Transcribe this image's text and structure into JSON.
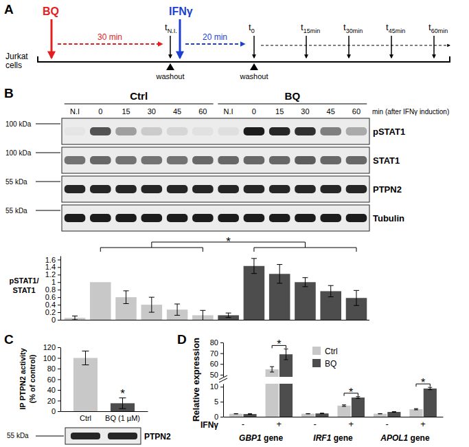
{
  "panel_labels": [
    "A",
    "B",
    "C",
    "D"
  ],
  "timeline": {
    "cell_label": [
      "Jurkat",
      "cells"
    ],
    "treatment": {
      "text": "BQ",
      "color": "#e41e1e",
      "duration": "30 min"
    },
    "stimulus": {
      "text": "IFNγ",
      "color": "#1c3fd1",
      "duration": "20 min"
    },
    "washout": [
      "washout",
      "washout"
    ],
    "timepoints": [
      {
        "base": "t",
        "sub": "N.I."
      },
      {
        "base": "t",
        "sub": "0"
      },
      {
        "base": "t",
        "sub": "15min"
      },
      {
        "base": "t",
        "sub": "30min"
      },
      {
        "base": "t",
        "sub": "45min"
      },
      {
        "base": "t",
        "sub": "60min"
      }
    ]
  },
  "blot_B": {
    "groups": [
      "Ctrl",
      "BQ"
    ],
    "lanes": [
      "N.I",
      "0",
      "15",
      "30",
      "45",
      "60",
      "N.I",
      "0",
      "15",
      "30",
      "45",
      "60"
    ],
    "lane_unit": "min (after IFNγ induction)",
    "rows": [
      {
        "name": "pSTAT1",
        "ladder": "100 kDa",
        "intensity": [
          0.03,
          0.7,
          0.35,
          0.15,
          0.1,
          0.05,
          0.06,
          0.95,
          0.9,
          0.85,
          0.5,
          0.3
        ]
      },
      {
        "name": "STAT1",
        "ladder": "100 kDa",
        "intensity": [
          0.55,
          0.6,
          0.55,
          0.55,
          0.55,
          0.6,
          0.6,
          0.6,
          0.6,
          0.65,
          0.6,
          0.6
        ]
      },
      {
        "name": "PTPN2",
        "ladder": "55 kDa",
        "intensity": [
          0.9,
          0.9,
          0.9,
          0.9,
          0.9,
          0.9,
          0.9,
          0.9,
          0.9,
          0.9,
          0.9,
          0.9
        ]
      },
      {
        "name": "Tubulin",
        "ladder": "55 kDa",
        "intensity": [
          0.95,
          0.95,
          0.95,
          0.95,
          0.95,
          0.95,
          0.95,
          0.95,
          0.95,
          0.95,
          0.95,
          0.95
        ]
      }
    ]
  },
  "blot_C": {
    "rows": [
      {
        "name": "PTPN2",
        "ladder": "55 kDa",
        "intensity": [
          0.9,
          0.9
        ]
      }
    ]
  },
  "chart_data": [
    {
      "type": "bar",
      "y_label": [
        "pSTAT1/",
        "STAT1"
      ],
      "categories": [
        null,
        null,
        null,
        null,
        null,
        null,
        null,
        null,
        null,
        null,
        null,
        null
      ],
      "series": [
        {
          "color": "#c8c8c8",
          "values": [
            0.05,
            1,
            0.6,
            0.4,
            0.27,
            0.12,
            null,
            null,
            null,
            null,
            null,
            null
          ],
          "errors": [
            0.05,
            null,
            0.17,
            0.2,
            0.15,
            0.13,
            null,
            null,
            null,
            null,
            null,
            null
          ]
        },
        {
          "color": "#4d4d4d",
          "values": [
            null,
            null,
            null,
            null,
            null,
            null,
            0.12,
            1.43,
            1.22,
            1.0,
            0.76,
            0.58
          ],
          "errors": [
            null,
            null,
            null,
            null,
            null,
            null,
            0.06,
            0.2,
            0.25,
            0.12,
            0.15,
            0.2
          ]
        }
      ],
      "ylim": [
        0,
        1.7
      ],
      "yticks": [
        0,
        0.2,
        0.4,
        0.6,
        0.8,
        1,
        1.2,
        1.4,
        1.6
      ],
      "tick_labels": "y",
      "annotations": [
        {
          "text": "*",
          "from": [
            1,
            5
          ],
          "to": [
            7,
            11
          ]
        }
      ]
    },
    {
      "type": "bar",
      "y_label": [
        "IP PTPN2 activity",
        "(% of control)"
      ],
      "categories": [
        "Ctrl",
        "BQ (1 µM)"
      ],
      "values": [
        100,
        15
      ],
      "errors": [
        13,
        10
      ],
      "colors": [
        "#c8c8c8",
        "#4d4d4d"
      ],
      "ylim": [
        0,
        120
      ],
      "yticks": [
        0,
        20,
        40,
        60,
        80,
        100,
        120
      ],
      "annotations": [
        {
          "text": "*",
          "category": 1
        }
      ]
    },
    {
      "type": "bar",
      "y_label": "Relative expression",
      "x_label": "IFNγ",
      "categories": [
        "-",
        "+",
        "-",
        "+",
        "-",
        "+"
      ],
      "groups": [
        "GBP1 gene",
        "IRF1 gene",
        "APOL1 gene"
      ],
      "series": [
        {
          "name": "Ctrl",
          "color": "#c8c8c8",
          "values": [
            1,
            55,
            1,
            3.7,
            1,
            2.5
          ],
          "errors": [
            0.05,
            2.5,
            0.05,
            0.25,
            0.05,
            0.2
          ]
        },
        {
          "name": "BQ",
          "color": "#4d4d4d",
          "values": [
            0.9,
            69,
            1.1,
            6.4,
            1.6,
            9.4
          ],
          "errors": [
            0.1,
            5,
            0.1,
            0.3,
            0.1,
            0.4
          ]
        }
      ],
      "ylim": [
        0,
        80
      ],
      "ybreak": [
        11,
        48
      ],
      "yticks": [
        0,
        5,
        10,
        50,
        60,
        70,
        80
      ],
      "legend": "top",
      "annotations": [
        {
          "text": "*",
          "category": 1
        },
        {
          "text": "*",
          "category": 3
        },
        {
          "text": "*",
          "category": 5
        }
      ]
    }
  ]
}
